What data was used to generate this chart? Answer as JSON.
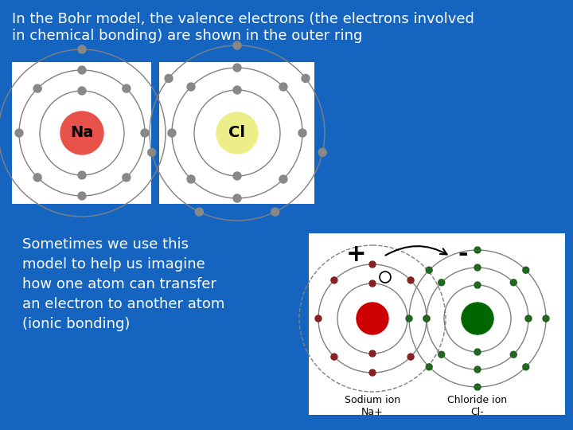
{
  "bg_color": "#1565C0",
  "white": "#FFFFFF",
  "title_text": "In the Bohr model, the valence electrons (the electrons involved\nin chemical bonding) are shown in the outer ring",
  "bottom_text": "Sometimes we use this\nmodel to help us imagine\nhow one atom can transfer\nan electron to another atom\n(ionic bonding)",
  "na_color": "#E8524A",
  "cl_color": "#EEEE88",
  "na_ion_color": "#CC0000",
  "cl_ion_color": "#006600",
  "electron_color_gray": "#888888",
  "electron_color_dark_red": "#882222",
  "electron_color_dark_green": "#226622",
  "na_label": "Na",
  "cl_label": "Cl",
  "sodium_ion_label": "Sodium ion\nNa+",
  "chloride_ion_label": "Chloride ion\nCl-"
}
